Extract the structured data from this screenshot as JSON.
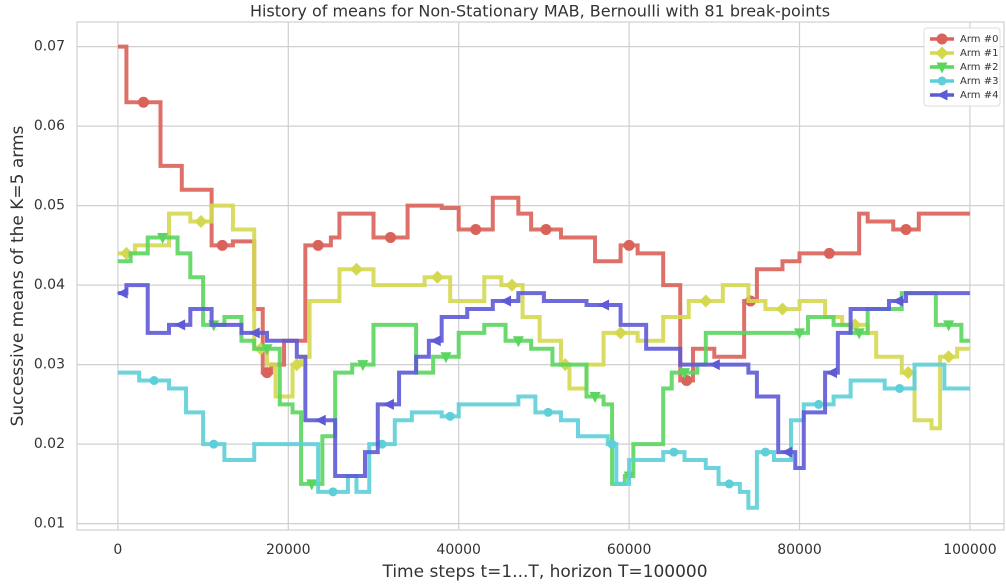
{
  "chart_data": {
    "type": "step",
    "title": "History of means for Non-Stationary MAB, Bernoulli with 81 break-points",
    "xlabel": "Time steps t=1...T, horizon T=100000",
    "ylabel": "Successive means of the K=5 arms",
    "xlim": [
      -4800,
      104000
    ],
    "ylim": [
      0.0092,
      0.0731
    ],
    "xticks": [
      0,
      20000,
      40000,
      60000,
      80000,
      100000
    ],
    "yticks": [
      0.01,
      0.02,
      0.03,
      0.04,
      0.05,
      0.06,
      0.07
    ],
    "grid": true,
    "legend": "upper right",
    "series": [
      {
        "name": "Arm #0",
        "color": "#d9625a",
        "x": [
          0,
          1000,
          5000,
          7500,
          11000,
          13500,
          16000,
          17000,
          18000,
          19500,
          22000,
          25000,
          26000,
          30000,
          34000,
          38000,
          40000,
          44000,
          47000,
          48500,
          52000,
          56000,
          59000,
          61000,
          64000,
          66000,
          67500,
          70000,
          73500,
          75000,
          78000,
          80000,
          87000,
          88000,
          91000,
          94000,
          100000
        ],
        "values": [
          0.07,
          0.063,
          0.055,
          0.052,
          0.045,
          0.0455,
          0.037,
          0.029,
          0.03,
          0.033,
          0.045,
          0.046,
          0.049,
          0.046,
          0.05,
          0.0497,
          0.047,
          0.051,
          0.049,
          0.047,
          0.046,
          0.043,
          0.045,
          0.044,
          0.04,
          0.028,
          0.032,
          0.031,
          0.038,
          0.042,
          0.043,
          0.044,
          0.049,
          0.048,
          0.047,
          0.049,
          0.049
        ]
      },
      {
        "name": "Arm #1",
        "color": "#d4d84f",
        "x": [
          0,
          2000,
          6000,
          8500,
          11000,
          13500,
          16000,
          17500,
          18500,
          20500,
          21500,
          22500,
          26000,
          30000,
          34000,
          36000,
          39000,
          43000,
          45000,
          47500,
          49500,
          52000,
          53000,
          55000,
          57000,
          61000,
          64000,
          67000,
          71000,
          74000,
          76000,
          80000,
          83000,
          85000,
          88000,
          89000,
          92000,
          93500,
          95500,
          96500,
          98500,
          100000
        ],
        "values": [
          0.044,
          0.045,
          0.049,
          0.048,
          0.05,
          0.047,
          0.032,
          0.03,
          0.026,
          0.03,
          0.031,
          0.038,
          0.042,
          0.04,
          0.04,
          0.041,
          0.038,
          0.041,
          0.04,
          0.036,
          0.033,
          0.03,
          0.027,
          0.03,
          0.034,
          0.033,
          0.036,
          0.038,
          0.04,
          0.038,
          0.037,
          0.038,
          0.036,
          0.035,
          0.034,
          0.031,
          0.029,
          0.023,
          0.022,
          0.031,
          0.032,
          0.032
        ]
      },
      {
        "name": "Arm #2",
        "color": "#5ad55e",
        "x": [
          0,
          1500,
          3500,
          7000,
          8500,
          10000,
          12500,
          14500,
          16000,
          19000,
          20500,
          21500,
          24000,
          25500,
          27500,
          30000,
          35000,
          37000,
          40000,
          43000,
          45500,
          48500,
          51000,
          55000,
          57000,
          58000,
          59500,
          60500,
          64000,
          65000,
          68000,
          69000,
          79000,
          81000,
          84000,
          86000,
          88000,
          92000,
          96000,
          99000,
          100000
        ],
        "values": [
          0.043,
          0.044,
          0.046,
          0.044,
          0.041,
          0.035,
          0.036,
          0.033,
          0.032,
          0.025,
          0.024,
          0.015,
          0.021,
          0.029,
          0.03,
          0.035,
          0.029,
          0.031,
          0.034,
          0.035,
          0.033,
          0.032,
          0.03,
          0.026,
          0.025,
          0.015,
          0.016,
          0.02,
          0.027,
          0.029,
          0.03,
          0.034,
          0.034,
          0.036,
          0.035,
          0.034,
          0.037,
          0.039,
          0.035,
          0.033,
          0.033
        ]
      },
      {
        "name": "Arm #3",
        "color": "#5ecfd8",
        "x": [
          0,
          2500,
          6000,
          8000,
          10000,
          12500,
          16000,
          23500,
          27000,
          28000,
          29500,
          32500,
          34500,
          38000,
          40000,
          47000,
          49000,
          52000,
          54000,
          57500,
          58500,
          60000,
          64000,
          66500,
          69000,
          70500,
          73000,
          74000,
          75000,
          77000,
          79000,
          80500,
          84000,
          86000,
          90000,
          93500,
          97000,
          100000
        ],
        "values": [
          0.029,
          0.028,
          0.027,
          0.024,
          0.02,
          0.018,
          0.02,
          0.014,
          0.016,
          0.014,
          0.02,
          0.023,
          0.024,
          0.0235,
          0.025,
          0.026,
          0.024,
          0.023,
          0.021,
          0.02,
          0.015,
          0.018,
          0.019,
          0.018,
          0.017,
          0.015,
          0.014,
          0.012,
          0.019,
          0.018,
          0.023,
          0.025,
          0.026,
          0.028,
          0.027,
          0.03,
          0.027,
          0.027
        ]
      },
      {
        "name": "Arm #4",
        "color": "#5e5ad6",
        "x": [
          0,
          1000,
          3500,
          6000,
          8500,
          11000,
          14500,
          17500,
          21000,
          22000,
          25500,
          29000,
          30500,
          33000,
          35000,
          36500,
          38000,
          41000,
          44000,
          47000,
          50000,
          55000,
          59000,
          62000,
          66000,
          74000,
          75000,
          77500,
          79500,
          80500,
          83000,
          84500,
          86000,
          90500,
          92500,
          100000
        ],
        "values": [
          0.039,
          0.04,
          0.034,
          0.035,
          0.037,
          0.035,
          0.034,
          0.033,
          0.031,
          0.023,
          0.016,
          0.019,
          0.025,
          0.029,
          0.031,
          0.033,
          0.036,
          0.037,
          0.038,
          0.039,
          0.038,
          0.0375,
          0.035,
          0.032,
          0.03,
          0.029,
          0.026,
          0.019,
          0.017,
          0.024,
          0.029,
          0.034,
          0.037,
          0.038,
          0.039,
          0.039
        ]
      }
    ]
  }
}
